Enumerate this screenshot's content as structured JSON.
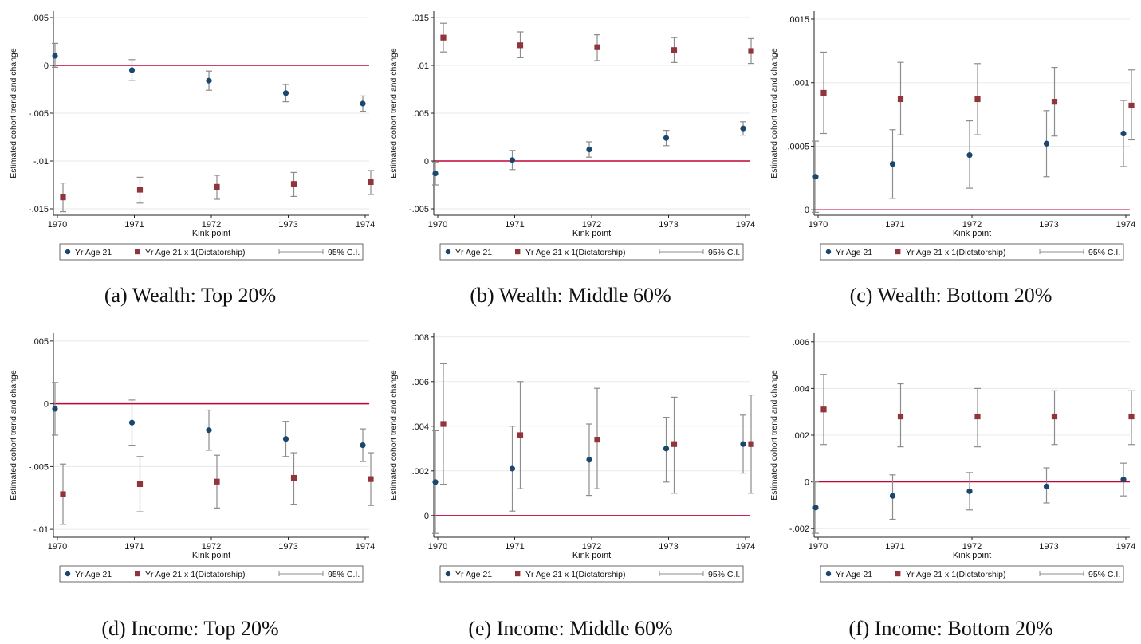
{
  "figure": {
    "xlabel": "Kink point",
    "ylabel": "Estimated cohort trend and change",
    "legend": {
      "series1": "Yr Age 21",
      "series2": "Yr Age 21 x 1(Dictatorship)",
      "ci": "95% C.I."
    },
    "colors": {
      "series1": "#1a476f",
      "series2": "#90353b",
      "ci": "#8c8c8c",
      "zero_line": "#c10534",
      "grid": "#eaeaea"
    }
  },
  "chart_data": [
    {
      "type": "scatter",
      "caption": "(a) Wealth: Top 20%",
      "x_categories": [
        "1970",
        "1971",
        "1972",
        "1973",
        "1974"
      ],
      "ylim": [
        -0.0155,
        0.0055
      ],
      "yticks": [
        0.005,
        0,
        -0.005,
        -0.01,
        -0.015
      ],
      "ytick_labels": [
        ".005",
        "0",
        "-.005",
        "-.01",
        "-.015"
      ],
      "series": [
        {
          "name": "Yr Age 21",
          "values": [
            0.001,
            -0.0005,
            -0.0016,
            -0.0029,
            -0.004
          ],
          "ci_low": [
            -0.0002,
            -0.0016,
            -0.0026,
            -0.0038,
            -0.0048
          ],
          "ci_high": [
            0.0023,
            0.0006,
            -0.0006,
            -0.002,
            -0.0032
          ]
        },
        {
          "name": "Yr Age 21 x 1(Dictatorship)",
          "values": [
            -0.0138,
            -0.013,
            -0.0127,
            -0.0124,
            -0.0122
          ],
          "ci_low": [
            -0.0153,
            -0.0144,
            -0.014,
            -0.0137,
            -0.0135
          ],
          "ci_high": [
            -0.0123,
            -0.0117,
            -0.0115,
            -0.0112,
            -0.011
          ]
        }
      ]
    },
    {
      "type": "scatter",
      "caption": "(b) Wealth: Middle 60%",
      "x_categories": [
        "1970",
        "1971",
        "1972",
        "1973",
        "1974"
      ],
      "ylim": [
        -0.0055,
        0.0155
      ],
      "yticks": [
        0.015,
        0.01,
        0.005,
        0,
        -0.005
      ],
      "ytick_labels": [
        ".015",
        ".01",
        ".005",
        "0",
        "-.005"
      ],
      "series": [
        {
          "name": "Yr Age 21",
          "values": [
            -0.0013,
            0.0001,
            0.0012,
            0.0024,
            0.0034
          ],
          "ci_low": [
            -0.0025,
            -0.0009,
            0.0004,
            0.0016,
            0.0027
          ],
          "ci_high": [
            -0.0001,
            0.0011,
            0.002,
            0.0032,
            0.0041
          ]
        },
        {
          "name": "Yr Age 21 x 1(Dictatorship)",
          "values": [
            0.0129,
            0.0121,
            0.0119,
            0.0116,
            0.0115
          ],
          "ci_low": [
            0.0114,
            0.0108,
            0.0105,
            0.0103,
            0.0102
          ],
          "ci_high": [
            0.0144,
            0.0135,
            0.0132,
            0.0129,
            0.0128
          ]
        }
      ]
    },
    {
      "type": "scatter",
      "caption": "(c) Wealth: Bottom 20%",
      "x_categories": [
        "1970",
        "1971",
        "1972",
        "1973",
        "1974"
      ],
      "ylim": [
        -3e-05,
        0.00155
      ],
      "yticks": [
        0.0015,
        0.001,
        0.0005,
        0
      ],
      "ytick_labels": [
        ".0015",
        ".001",
        ".0005",
        "0"
      ],
      "series": [
        {
          "name": "Yr Age 21",
          "values": [
            0.00026,
            0.00036,
            0.00043,
            0.00052,
            0.0006
          ],
          "ci_low": [
            -2e-05,
            9e-05,
            0.00017,
            0.00026,
            0.00034
          ],
          "ci_high": [
            0.00054,
            0.00063,
            0.0007,
            0.00078,
            0.00086
          ]
        },
        {
          "name": "Yr Age 21 x 1(Dictatorship)",
          "values": [
            0.00092,
            0.00087,
            0.00087,
            0.00085,
            0.00082
          ],
          "ci_low": [
            0.0006,
            0.00059,
            0.00059,
            0.00058,
            0.00055
          ],
          "ci_high": [
            0.00124,
            0.00116,
            0.00115,
            0.00112,
            0.0011
          ]
        }
      ]
    },
    {
      "type": "scatter",
      "caption": "(d) Income: Top 20%",
      "x_categories": [
        "1970",
        "1971",
        "1972",
        "1973",
        "1974"
      ],
      "ylim": [
        -0.0105,
        0.0055
      ],
      "yticks": [
        0.005,
        0,
        -0.005,
        -0.01
      ],
      "ytick_labels": [
        ".005",
        "0",
        "-.005",
        "-.01"
      ],
      "series": [
        {
          "name": "Yr Age 21",
          "values": [
            -0.0004,
            -0.0015,
            -0.0021,
            -0.0028,
            -0.0033
          ],
          "ci_low": [
            -0.0025,
            -0.0033,
            -0.0037,
            -0.0042,
            -0.0046
          ],
          "ci_high": [
            0.0017,
            0.0003,
            -0.0005,
            -0.0014,
            -0.002
          ]
        },
        {
          "name": "Yr Age 21 x 1(Dictatorship)",
          "values": [
            -0.0072,
            -0.0064,
            -0.0062,
            -0.0059,
            -0.006
          ],
          "ci_low": [
            -0.0096,
            -0.0086,
            -0.0083,
            -0.008,
            -0.0081
          ],
          "ci_high": [
            -0.0048,
            -0.0042,
            -0.0041,
            -0.0039,
            -0.0039
          ]
        }
      ]
    },
    {
      "type": "scatter",
      "caption": "(e) Income: Middle 60%",
      "x_categories": [
        "1970",
        "1971",
        "1972",
        "1973",
        "1974"
      ],
      "ylim": [
        -0.0009,
        0.0081
      ],
      "yticks": [
        0.008,
        0.006,
        0.004,
        0.002,
        0
      ],
      "ytick_labels": [
        ".008",
        ".006",
        ".004",
        ".002",
        "0"
      ],
      "series": [
        {
          "name": "Yr Age 21",
          "values": [
            0.0015,
            0.0021,
            0.0025,
            0.003,
            0.0032
          ],
          "ci_low": [
            -0.0008,
            0.0002,
            0.0009,
            0.0015,
            0.0019
          ],
          "ci_high": [
            0.0038,
            0.004,
            0.0041,
            0.0044,
            0.0045
          ]
        },
        {
          "name": "Yr Age 21 x 1(Dictatorship)",
          "values": [
            0.0041,
            0.0036,
            0.0034,
            0.0032,
            0.0032
          ],
          "ci_low": [
            0.0014,
            0.0012,
            0.0012,
            0.001,
            0.001
          ],
          "ci_high": [
            0.0068,
            0.006,
            0.0057,
            0.0053,
            0.0054
          ]
        }
      ]
    },
    {
      "type": "scatter",
      "caption": "(f) Income: Bottom 20%",
      "x_categories": [
        "1970",
        "1971",
        "1972",
        "1973",
        "1974"
      ],
      "ylim": [
        -0.0023,
        0.0063
      ],
      "yticks": [
        0.006,
        0.004,
        0.002,
        0,
        -0.002
      ],
      "ytick_labels": [
        ".006",
        ".004",
        ".002",
        "0",
        "-.002"
      ],
      "series": [
        {
          "name": "Yr Age 21",
          "values": [
            -0.0011,
            -0.0006,
            -0.0004,
            -0.0002,
            0.0001
          ],
          "ci_low": [
            -0.0022,
            -0.0016,
            -0.0012,
            -0.0009,
            -0.0006
          ],
          "ci_high": [
            0.0,
            0.0003,
            0.0004,
            0.0006,
            0.0008
          ]
        },
        {
          "name": "Yr Age 21 x 1(Dictatorship)",
          "values": [
            0.0031,
            0.0028,
            0.0028,
            0.0028,
            0.0028
          ],
          "ci_low": [
            0.0016,
            0.0015,
            0.0015,
            0.0016,
            0.0016
          ],
          "ci_high": [
            0.0046,
            0.0042,
            0.004,
            0.0039,
            0.0039
          ]
        }
      ]
    }
  ]
}
